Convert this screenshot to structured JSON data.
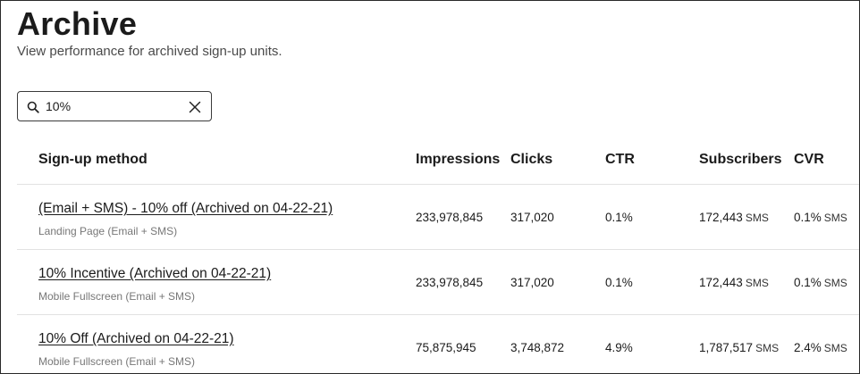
{
  "page": {
    "title": "Archive",
    "subtitle": "View performance for archived sign-up units."
  },
  "search": {
    "value": "10%",
    "icon": "search-icon",
    "clear_icon": "close-icon"
  },
  "table": {
    "headers": {
      "method": "Sign-up method",
      "impressions": "Impressions",
      "clicks": "Clicks",
      "ctr": "CTR",
      "subscribers": "Subscribers",
      "cvr": "CVR"
    },
    "rows": [
      {
        "name": "(Email + SMS) - 10% off (Archived on 04-22-21)",
        "type": "Landing Page (Email + SMS)",
        "impressions": "233,978,845",
        "clicks": "317,020",
        "ctr": "0.1%",
        "subscribers": "172,443",
        "subscribers_unit": "SMS",
        "cvr": "0.1%",
        "cvr_unit": "SMS"
      },
      {
        "name": "10% Incentive (Archived on 04-22-21)",
        "type": "Mobile Fullscreen (Email + SMS)",
        "impressions": "233,978,845",
        "clicks": "317,020",
        "ctr": "0.1%",
        "subscribers": "172,443",
        "subscribers_unit": "SMS",
        "cvr": "0.1%",
        "cvr_unit": "SMS"
      },
      {
        "name": "10% Off (Archived on 04-22-21)",
        "type": "Mobile Fullscreen (Email + SMS)",
        "impressions": "75,875,945",
        "clicks": "3,748,872",
        "ctr": "4.9%",
        "subscribers": "1,787,517",
        "subscribers_unit": "SMS",
        "cvr": "2.4%",
        "cvr_unit": "SMS"
      }
    ]
  }
}
